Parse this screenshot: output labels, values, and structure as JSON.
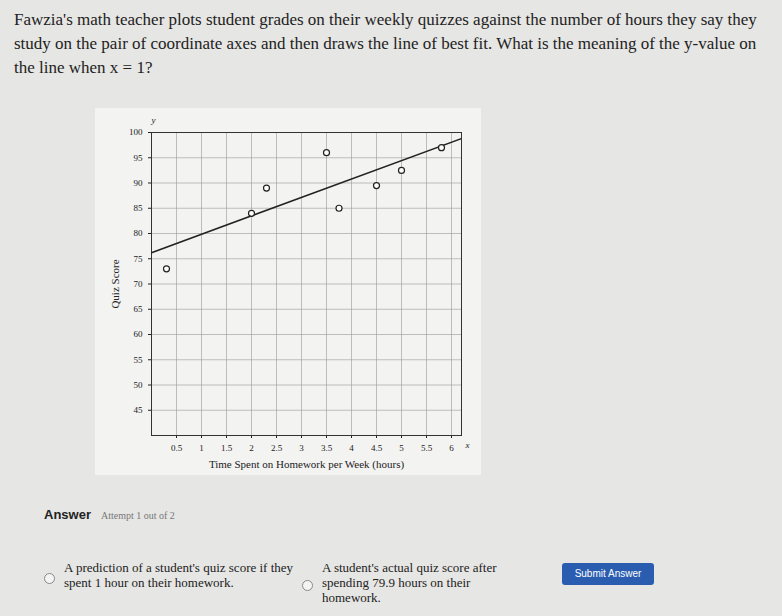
{
  "question": "Fawzia's math teacher plots student grades on their weekly quizzes against the number of hours they say they study on the pair of coordinate axes and then draws the line of best fit. What is the meaning of the y-value on the line when x = 1?",
  "chart_data": {
    "type": "scatter",
    "x_label": "Time Spent on Homework per Week (hours)",
    "y_label": "Quiz Score",
    "x_symbol": "x",
    "y_symbol": "y",
    "x": [
      0.3,
      2.0,
      2.3,
      3.5,
      3.75,
      4.5,
      5.0,
      5.8
    ],
    "values": [
      73,
      84,
      89,
      96,
      85,
      89.5,
      92.5,
      97
    ],
    "line_of_best_fit": {
      "x": [
        0,
        6.2
      ],
      "y": [
        76.2,
        98.8
      ]
    },
    "xlim": [
      0,
      6.2
    ],
    "ylim": [
      40,
      100
    ],
    "xticks": [
      0.5,
      1,
      1.5,
      2,
      2.5,
      3,
      3.5,
      4,
      4.5,
      5,
      5.5,
      6
    ],
    "yticks": [
      45,
      50,
      55,
      60,
      65,
      70,
      75,
      80,
      85,
      90,
      95,
      100
    ],
    "grid": true,
    "marker": "circle"
  },
  "answer": {
    "heading": "Answer",
    "attempt": "Attempt 1 out of 2",
    "options": [
      "A prediction of a student's quiz score if they spent 1 hour on their homework.",
      "A student's actual quiz score after spending 79.9 hours on their homework."
    ],
    "button": "Submit Answer"
  }
}
